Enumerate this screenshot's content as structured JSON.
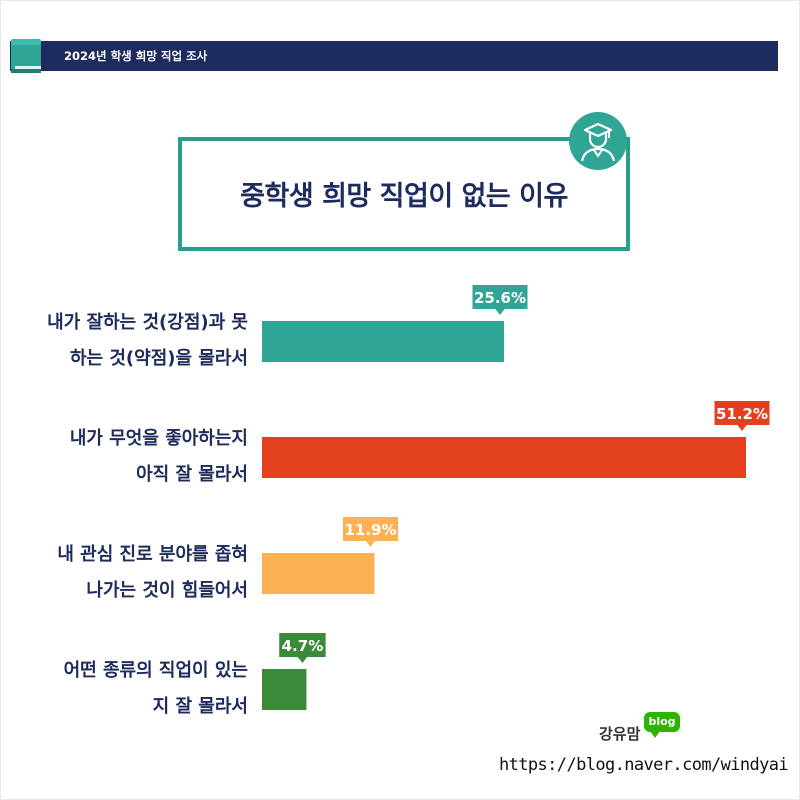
{
  "header": {
    "title": "2024년 학생 희망 직업 조사",
    "icon": "book-icon"
  },
  "main_title": "중학생 희망 직업이 없는 이유",
  "title_icon": "graduate-icon",
  "footer": {
    "blog_name": "강유맘",
    "blog_badge": "blog",
    "url": "https://blog.naver.com/windyai"
  },
  "colors": {
    "navy": "#1e2b5e",
    "teal": "#2a9d8f",
    "red": "#e2401f",
    "orange": "#fdb152",
    "green": "#3a8a3a"
  },
  "chart_data": {
    "type": "bar",
    "orientation": "horizontal",
    "title": "중학생 희망 직업이 없는 이유",
    "categories": [
      [
        "내가 잘하는 것(강점)과 못",
        "하는 것(약점)을 몰라서"
      ],
      [
        "내가 무엇을 좋아하는지",
        "아직 잘 몰라서"
      ],
      [
        "내 관심 진로 분야를 좁혀",
        "나가는 것이 힘들어서"
      ],
      [
        "어떤 종류의 직업이 있는",
        "지 잘 몰라서"
      ]
    ],
    "values": [
      25.6,
      51.2,
      11.9,
      4.7
    ],
    "value_labels": [
      "25.6%",
      "51.2%",
      "11.9%",
      "4.7%"
    ],
    "bar_colors": [
      "#2fa595",
      "#e2401f",
      "#fdb152",
      "#3a8a3a"
    ],
    "xlim": [
      0,
      51.2
    ],
    "grid": false,
    "legend": "none"
  }
}
